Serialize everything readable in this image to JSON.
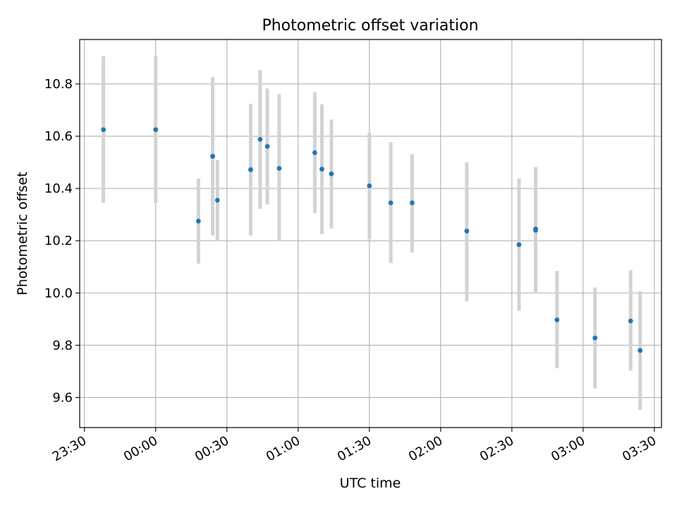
{
  "chart_data": {
    "type": "scatter",
    "title": "Photometric offset variation",
    "xlabel": "UTC time",
    "ylabel": "Photometric offset",
    "x_unit": "UTC time of day",
    "xlim": [
      "23:28",
      "03:33"
    ],
    "ylim": [
      9.485,
      10.97
    ],
    "grid": true,
    "x_ticks": [
      "23:30",
      "00:00",
      "00:30",
      "01:00",
      "01:30",
      "02:00",
      "02:30",
      "03:00",
      "03:30"
    ],
    "y_ticks": [
      "9.6",
      "9.8",
      "10.0",
      "10.2",
      "10.4",
      "10.6",
      "10.8"
    ],
    "error_bar_color": "#d3d3d3",
    "marker_color": "#1f77b4",
    "points": [
      {
        "x": "23:38",
        "y": 10.625,
        "yerr_low": 10.345,
        "yerr_high": 10.907
      },
      {
        "x": "00:00",
        "y": 10.625,
        "yerr_low": 10.345,
        "yerr_high": 10.907
      },
      {
        "x": "00:18",
        "y": 10.275,
        "yerr_low": 10.112,
        "yerr_high": 10.438
      },
      {
        "x": "00:24",
        "y": 10.523,
        "yerr_low": 10.22,
        "yerr_high": 10.826
      },
      {
        "x": "00:26",
        "y": 10.355,
        "yerr_low": 10.199,
        "yerr_high": 10.509
      },
      {
        "x": "00:40",
        "y": 10.472,
        "yerr_low": 10.22,
        "yerr_high": 10.724
      },
      {
        "x": "00:44",
        "y": 10.588,
        "yerr_low": 10.322,
        "yerr_high": 10.853
      },
      {
        "x": "00:47",
        "y": 10.561,
        "yerr_low": 10.339,
        "yerr_high": 10.783
      },
      {
        "x": "00:52",
        "y": 10.477,
        "yerr_low": 10.199,
        "yerr_high": 10.761
      },
      {
        "x": "01:07",
        "y": 10.537,
        "yerr_low": 10.306,
        "yerr_high": 10.769
      },
      {
        "x": "01:10",
        "y": 10.474,
        "yerr_low": 10.225,
        "yerr_high": 10.722
      },
      {
        "x": "01:14",
        "y": 10.456,
        "yerr_low": 10.247,
        "yerr_high": 10.664
      },
      {
        "x": "01:30",
        "y": 10.41,
        "yerr_low": 10.207,
        "yerr_high": 10.614
      },
      {
        "x": "01:39",
        "y": 10.345,
        "yerr_low": 10.115,
        "yerr_high": 10.577
      },
      {
        "x": "01:48",
        "y": 10.345,
        "yerr_low": 10.155,
        "yerr_high": 10.531
      },
      {
        "x": "02:11",
        "y": 10.237,
        "yerr_low": 9.968,
        "yerr_high": 10.5
      },
      {
        "x": "02:33",
        "y": 10.185,
        "yerr_low": 9.932,
        "yerr_high": 10.438
      },
      {
        "x": "02:40",
        "y": 10.24,
        "yerr_low": 9.998,
        "yerr_high": 10.482
      },
      {
        "x": "02:40",
        "y": 10.245,
        "yerr_low": 10.006,
        "yerr_high": 10.479
      },
      {
        "x": "02:49",
        "y": 9.897,
        "yerr_low": 9.712,
        "yerr_high": 10.084
      },
      {
        "x": "03:05",
        "y": 9.828,
        "yerr_low": 9.635,
        "yerr_high": 10.021
      },
      {
        "x": "03:20",
        "y": 9.893,
        "yerr_low": 9.703,
        "yerr_high": 10.087
      },
      {
        "x": "03:24",
        "y": 9.78,
        "yerr_low": 9.552,
        "yerr_high": 10.007
      }
    ]
  }
}
